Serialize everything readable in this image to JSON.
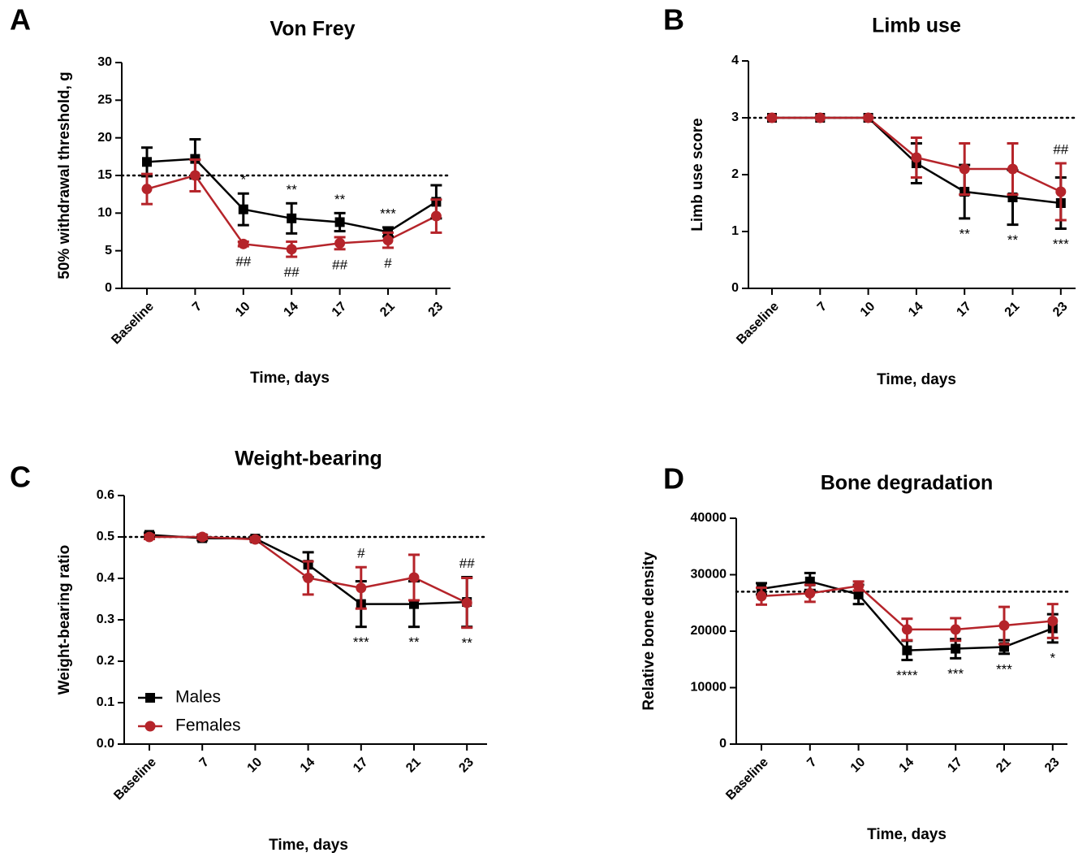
{
  "chart_data": [
    {
      "type": "line",
      "panel_label": "A",
      "title": "Von Frey",
      "y_label": "50% withdrawal threshold, g",
      "x_label": "Time, days",
      "categories": [
        "Baseline",
        "7",
        "10",
        "14",
        "17",
        "21",
        "23"
      ],
      "ylim": [
        0,
        30
      ],
      "yticks": [
        0,
        5,
        10,
        15,
        20,
        25,
        30
      ],
      "reference_line": 15,
      "series": [
        {
          "color": "#000000",
          "marker": "square",
          "values": [
            16.8,
            17.2,
            10.5,
            9.3,
            8.8,
            7.5,
            11.5
          ],
          "errors": [
            1.9,
            2.6,
            2.1,
            2.0,
            1.2,
            0.6,
            2.2
          ]
        },
        {
          "color": "#b5242a",
          "marker": "circle",
          "values": [
            13.2,
            15.0,
            5.9,
            5.2,
            6.0,
            6.4,
            9.6
          ],
          "errors": [
            2.0,
            2.1,
            0.3,
            1.0,
            0.8,
            1.0,
            2.2
          ]
        }
      ],
      "annotations_above": [
        null,
        null,
        "*",
        "**",
        "**",
        "***",
        null
      ],
      "annotations_below": [
        null,
        null,
        "##",
        "##",
        "##",
        "#",
        null
      ]
    },
    {
      "type": "line",
      "panel_label": "B",
      "title": "Limb use",
      "y_label": "Limb use score",
      "x_label": "Time, days",
      "categories": [
        "Baseline",
        "7",
        "10",
        "14",
        "17",
        "21",
        "23"
      ],
      "ylim": [
        0,
        4
      ],
      "yticks": [
        0,
        1,
        2,
        3,
        4
      ],
      "reference_line": 3,
      "series": [
        {
          "color": "#000000",
          "marker": "square",
          "values": [
            3,
            3,
            3,
            2.2,
            1.7,
            1.6,
            1.5
          ],
          "errors": [
            0,
            0,
            0,
            0.35,
            0.47,
            0.48,
            0.45
          ]
        },
        {
          "color": "#b5242a",
          "marker": "circle",
          "values": [
            3,
            3,
            3,
            2.3,
            2.1,
            2.1,
            1.7
          ],
          "errors": [
            0,
            0,
            0,
            0.35,
            0.45,
            0.45,
            0.5
          ]
        }
      ],
      "annotations_above": [
        null,
        null,
        null,
        null,
        null,
        null,
        "##"
      ],
      "annotations_below": [
        null,
        null,
        null,
        null,
        "**",
        "**",
        "***"
      ]
    },
    {
      "type": "line",
      "panel_label": "C",
      "title": "Weight-bearing",
      "y_label": "Weight-bearing ratio",
      "x_label": "Time, days",
      "categories": [
        "Baseline",
        "7",
        "10",
        "14",
        "17",
        "21",
        "23"
      ],
      "ylim": [
        0,
        0.6
      ],
      "yticks": [
        {
          "value": 0,
          "label": "0.0"
        },
        0.1,
        0.2,
        0.3,
        0.4,
        0.5,
        0.6
      ],
      "reference_line": 0.5,
      "legend": "lower left",
      "series": [
        {
          "name": "Males",
          "color": "#000000",
          "marker": "square",
          "values": [
            0.505,
            0.497,
            0.496,
            0.433,
            0.338,
            0.338,
            0.343
          ],
          "errors": [
            0.005,
            0.005,
            0.005,
            0.03,
            0.055,
            0.055,
            0.06
          ]
        },
        {
          "name": "Females",
          "color": "#b5242a",
          "marker": "circle",
          "values": [
            0.5,
            0.5,
            0.494,
            0.401,
            0.377,
            0.402,
            0.341
          ],
          "errors": [
            0.005,
            0.005,
            0.005,
            0.04,
            0.05,
            0.055,
            0.06
          ]
        }
      ],
      "annotations_above": [
        null,
        null,
        null,
        null,
        "#",
        null,
        "##"
      ],
      "annotations_below": [
        null,
        null,
        null,
        null,
        "***",
        "**",
        "**"
      ]
    },
    {
      "type": "line",
      "panel_label": "D",
      "title": "Bone degradation",
      "y_label": "Relative bone density",
      "x_label": "Time, days",
      "categories": [
        "Baseline",
        "7",
        "10",
        "14",
        "17",
        "21",
        "23"
      ],
      "ylim": [
        0,
        40000
      ],
      "yticks": [
        0,
        10000,
        20000,
        30000,
        40000
      ],
      "reference_line": 27000,
      "series": [
        {
          "color": "#000000",
          "marker": "square",
          "values": [
            27500,
            28800,
            26500,
            16600,
            16900,
            17200,
            20500
          ],
          "errors": [
            1000,
            1500,
            1700,
            1700,
            1700,
            1200,
            2500
          ]
        },
        {
          "color": "#b5242a",
          "marker": "circle",
          "values": [
            26200,
            26700,
            28000,
            20300,
            20300,
            21000,
            21800
          ],
          "errors": [
            1500,
            1500,
            800,
            1900,
            2000,
            3300,
            3000
          ]
        }
      ],
      "annotations_above": [
        null,
        null,
        null,
        null,
        null,
        null,
        null
      ],
      "annotations_below": [
        null,
        null,
        null,
        "****",
        "***",
        "***",
        "*"
      ]
    }
  ]
}
